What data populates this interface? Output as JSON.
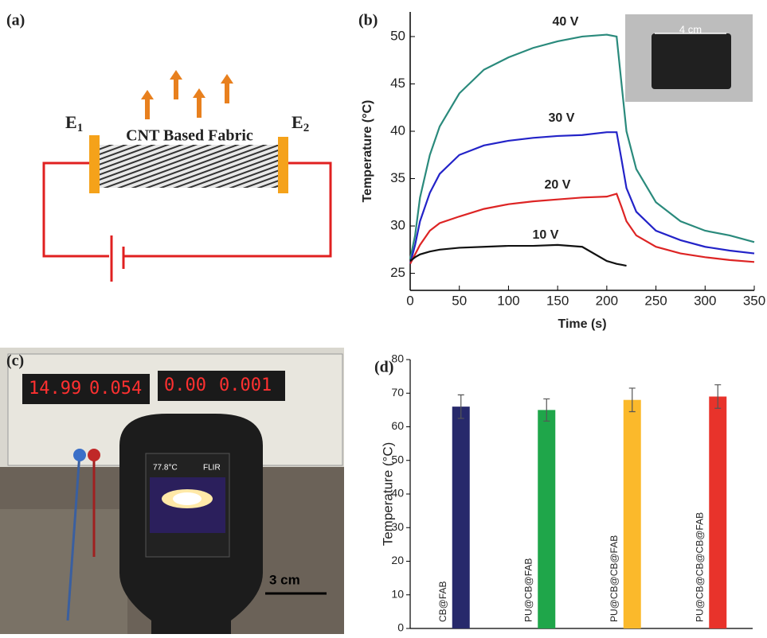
{
  "diagram": {
    "label": "(a)",
    "electrode_1": {
      "name": "E",
      "subscript": "1"
    },
    "electrode_2": {
      "name": "E",
      "subscript": "2"
    },
    "fabric_label": "CNT Based Fabric"
  },
  "photo": {
    "label": "(c)",
    "display_left": [
      "14.99",
      "0.054"
    ],
    "display_right": [
      "0.00",
      "0.001"
    ],
    "camera_reading": "77.8°C",
    "camera_brand": "FLIR",
    "scale_bar": "3 cm"
  },
  "chart_data": [
    {
      "type": "line",
      "panel_label": "(b)",
      "x_label": "Time (s)",
      "y_label": "Temperature (°C)",
      "x": [
        0,
        5,
        10,
        20,
        30,
        50,
        75,
        100,
        125,
        150,
        175,
        200,
        210,
        215,
        220,
        230,
        250,
        275,
        300,
        325,
        350
      ],
      "series": [
        {
          "name": "40 V",
          "color": "#2a8a7c",
          "values": [
            26.5,
            29,
            33,
            37.5,
            40.5,
            44,
            46.5,
            47.8,
            48.8,
            49.5,
            50,
            50.2,
            50,
            45,
            40,
            36,
            32.5,
            30.5,
            29.5,
            29,
            28.3
          ]
        },
        {
          "name": "30 V",
          "color": "#2323c8",
          "values": [
            26,
            28,
            30.5,
            33.5,
            35.5,
            37.5,
            38.5,
            39,
            39.3,
            39.5,
            39.6,
            39.9,
            39.9,
            37,
            34,
            31.5,
            29.5,
            28.5,
            27.8,
            27.4,
            27.1
          ]
        },
        {
          "name": "20 V",
          "color": "#dd2424",
          "values": [
            26,
            27,
            28,
            29.5,
            30.3,
            31,
            31.8,
            32.3,
            32.6,
            32.8,
            33,
            33.1,
            33.4,
            32,
            30.5,
            29,
            27.8,
            27.1,
            26.7,
            26.4,
            26.2
          ]
        },
        {
          "name": "10 V",
          "color": "#111111",
          "values": [
            26.3,
            26.7,
            27,
            27.3,
            27.5,
            27.7,
            27.8,
            27.9,
            27.9,
            28,
            27.8,
            26.3,
            26,
            25.9,
            25.8,
            null,
            null,
            null,
            null,
            null,
            null
          ]
        }
      ],
      "inset_label": "4 cm",
      "xlim": [
        0,
        350
      ],
      "xticks": [
        0,
        50,
        100,
        150,
        200,
        250,
        300,
        350
      ],
      "ylim": [
        23.2,
        52.6
      ],
      "yticks": [
        25,
        30,
        35,
        40,
        45,
        50
      ]
    },
    {
      "type": "bar",
      "panel_label": "(d)",
      "y_label": "Temperature (°C)",
      "categories": [
        "CB@FAB",
        "PU@CB@FAB",
        "PU@CB@CB@FAB",
        "PU@CB@CB@CB@FAB"
      ],
      "values": [
        66,
        65,
        68,
        69
      ],
      "errors": [
        3.5,
        3.3,
        3.5,
        3.5
      ],
      "colors": [
        "#27296b",
        "#1fa64a",
        "#fbb92b",
        "#e8332b"
      ],
      "ylim": [
        0,
        80
      ],
      "yticks": [
        0,
        10,
        20,
        30,
        40,
        50,
        60,
        70,
        80
      ]
    }
  ]
}
